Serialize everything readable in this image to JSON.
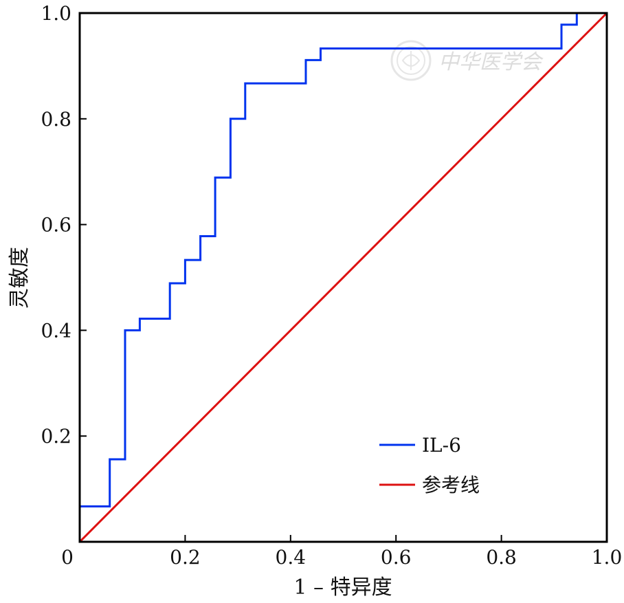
{
  "chart_data": {
    "type": "line",
    "title": "",
    "xlabel": "1 – 特异度",
    "ylabel": "灵敏度",
    "xlim": [
      0,
      1
    ],
    "ylim": [
      0,
      1
    ],
    "x_ticks": [
      {
        "value": 0,
        "label": "0"
      },
      {
        "value": 0.2,
        "label": "0.2"
      },
      {
        "value": 0.4,
        "label": "0.4"
      },
      {
        "value": 0.6,
        "label": "0.6"
      },
      {
        "value": 0.8,
        "label": "0.8"
      },
      {
        "value": 1.0,
        "label": "1.0"
      }
    ],
    "y_ticks": [
      {
        "value": 0.2,
        "label": "0.2"
      },
      {
        "value": 0.4,
        "label": "0.4"
      },
      {
        "value": 0.6,
        "label": "0.6"
      },
      {
        "value": 0.8,
        "label": "0.8"
      },
      {
        "value": 1.0,
        "label": "1.0"
      }
    ],
    "grid": false,
    "legend_position": "bottom-right",
    "series": [
      {
        "name": "IL-6",
        "color": "#0033ee",
        "style": "step",
        "points": [
          [
            0.0,
            0.067
          ],
          [
            0.057,
            0.067
          ],
          [
            0.057,
            0.156
          ],
          [
            0.086,
            0.156
          ],
          [
            0.086,
            0.4
          ],
          [
            0.114,
            0.4
          ],
          [
            0.114,
            0.422
          ],
          [
            0.171,
            0.422
          ],
          [
            0.171,
            0.489
          ],
          [
            0.2,
            0.489
          ],
          [
            0.2,
            0.533
          ],
          [
            0.229,
            0.533
          ],
          [
            0.229,
            0.578
          ],
          [
            0.257,
            0.578
          ],
          [
            0.257,
            0.689
          ],
          [
            0.286,
            0.689
          ],
          [
            0.286,
            0.8
          ],
          [
            0.314,
            0.8
          ],
          [
            0.314,
            0.867
          ],
          [
            0.429,
            0.867
          ],
          [
            0.429,
            0.911
          ],
          [
            0.457,
            0.911
          ],
          [
            0.457,
            0.933
          ],
          [
            0.914,
            0.933
          ],
          [
            0.914,
            0.978
          ],
          [
            0.943,
            0.978
          ],
          [
            0.943,
            1.0
          ],
          [
            1.0,
            1.0
          ]
        ]
      },
      {
        "name": "参考线",
        "color": "#dd1111",
        "style": "line",
        "points": [
          [
            0,
            0
          ],
          [
            1,
            1
          ]
        ]
      }
    ],
    "watermark": "中华医学会"
  }
}
